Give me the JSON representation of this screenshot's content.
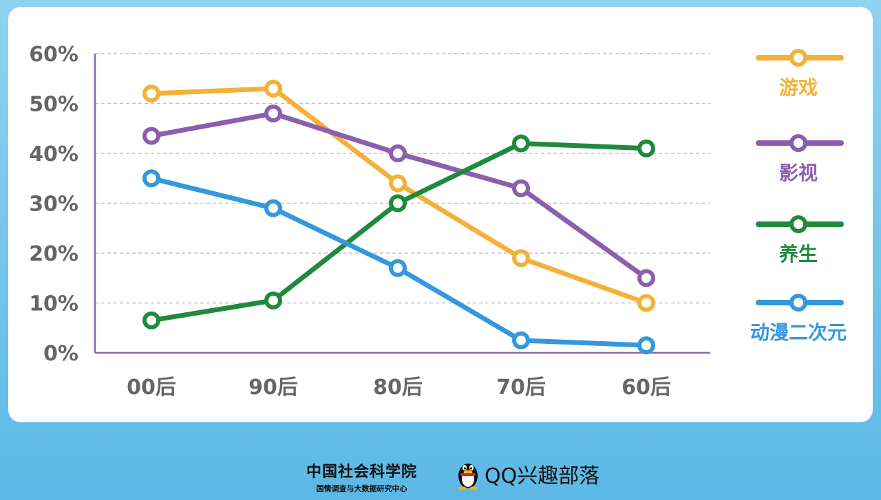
{
  "chart_data": {
    "type": "line",
    "categories": [
      "00后",
      "90后",
      "80后",
      "70后",
      "60后"
    ],
    "yticks": [
      "60%",
      "50%",
      "40%",
      "30%",
      "20%",
      "10%",
      "0%"
    ],
    "ylim": [
      0,
      60
    ],
    "grid": true,
    "legend_position": "right",
    "series": [
      {
        "name": "游戏",
        "color": "#f4b13a",
        "values": [
          52,
          53,
          34,
          19,
          10
        ]
      },
      {
        "name": "影视",
        "color": "#8b5fae",
        "values": [
          43.5,
          48,
          40,
          33,
          15
        ]
      },
      {
        "name": "养生",
        "color": "#1f8a3c",
        "values": [
          6.5,
          10.5,
          30,
          42,
          41
        ]
      },
      {
        "name": "动漫二次元",
        "color": "#3597dc",
        "values": [
          35,
          29,
          17,
          2.5,
          1.5
        ]
      }
    ]
  },
  "footer": {
    "cass_name": "中国社会科学院",
    "cass_sub": "国情调查与大数据研究中心",
    "qq_name": "QQ兴趣部落"
  }
}
